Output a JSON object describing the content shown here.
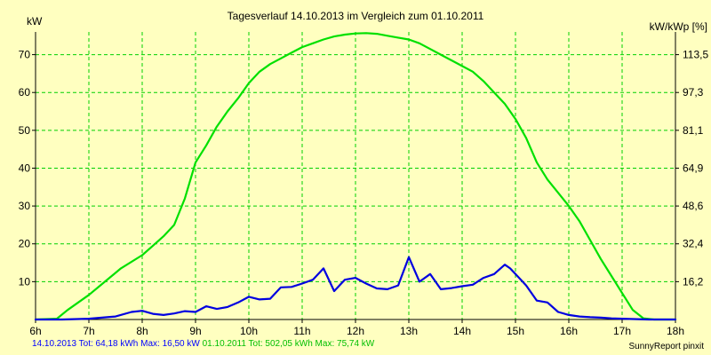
{
  "chart_data": {
    "type": "line",
    "title": "Tagesverlauf 14.10.2013 im Vergleich zum 01.10.2011",
    "ylabel_left": "kW",
    "ylabel_right": "kW/kWp [%]",
    "xlim": [
      6,
      18
    ],
    "ylim": [
      0,
      76
    ],
    "x_ticks": [
      {
        "x": 6,
        "label": "6h"
      },
      {
        "x": 7,
        "label": "7h"
      },
      {
        "x": 8,
        "label": "8h"
      },
      {
        "x": 9,
        "label": "9h"
      },
      {
        "x": 10,
        "label": "10h"
      },
      {
        "x": 11,
        "label": "11h"
      },
      {
        "x": 12,
        "label": "12h"
      },
      {
        "x": 13,
        "label": "13h"
      },
      {
        "x": 14,
        "label": "14h"
      },
      {
        "x": 15,
        "label": "15h"
      },
      {
        "x": 16,
        "label": "16h"
      },
      {
        "x": 17,
        "label": "17h"
      },
      {
        "x": 18,
        "label": "18h"
      }
    ],
    "y_ticks_left": [
      {
        "y": 10,
        "label": "10"
      },
      {
        "y": 20,
        "label": "20"
      },
      {
        "y": 30,
        "label": "30"
      },
      {
        "y": 40,
        "label": "40"
      },
      {
        "y": 50,
        "label": "50"
      },
      {
        "y": 60,
        "label": "60"
      },
      {
        "y": 70,
        "label": "70"
      }
    ],
    "y_ticks_right": [
      {
        "y": 10,
        "label": "16,2"
      },
      {
        "y": 20,
        "label": "32,4"
      },
      {
        "y": 30,
        "label": "48,6"
      },
      {
        "y": 40,
        "label": "64,9"
      },
      {
        "y": 50,
        "label": "81,1"
      },
      {
        "y": 60,
        "label": "97,3"
      },
      {
        "y": 70,
        "label": "113,5"
      }
    ],
    "grid": true,
    "series": [
      {
        "name": "01.10.2011",
        "color": "#00e000",
        "x": [
          6.0,
          6.4,
          6.6,
          7.0,
          7.3,
          7.6,
          8.0,
          8.2,
          8.4,
          8.6,
          8.8,
          9.0,
          9.2,
          9.4,
          9.6,
          9.8,
          10.0,
          10.2,
          10.4,
          10.6,
          10.8,
          11.0,
          11.2,
          11.4,
          11.6,
          11.8,
          12.0,
          12.2,
          12.4,
          12.6,
          12.8,
          13.0,
          13.2,
          13.4,
          13.6,
          13.8,
          14.0,
          14.2,
          14.4,
          14.6,
          14.8,
          15.0,
          15.2,
          15.4,
          15.6,
          15.8,
          16.0,
          16.2,
          16.4,
          16.6,
          16.8,
          17.0,
          17.2,
          17.4,
          17.6,
          18.0
        ],
        "y": [
          0.0,
          0.2,
          2.5,
          6.5,
          10.0,
          13.5,
          17.0,
          19.5,
          22.0,
          25.0,
          32.0,
          41.5,
          46.0,
          51.0,
          55.0,
          58.5,
          62.5,
          65.5,
          67.5,
          69.0,
          70.5,
          72.0,
          73.0,
          74.0,
          74.8,
          75.3,
          75.6,
          75.7,
          75.5,
          75.0,
          74.5,
          74.0,
          73.0,
          71.5,
          70.0,
          68.5,
          67.0,
          65.5,
          63.0,
          60.0,
          57.0,
          53.0,
          48.0,
          41.5,
          37.0,
          33.5,
          30.0,
          26.0,
          21.0,
          16.0,
          11.5,
          7.0,
          2.5,
          0.3,
          0.0,
          0.0
        ]
      },
      {
        "name": "14.10.2013",
        "color": "#0000e0",
        "x": [
          6.0,
          6.5,
          7.0,
          7.5,
          7.8,
          8.0,
          8.2,
          8.4,
          8.6,
          8.8,
          9.0,
          9.2,
          9.4,
          9.6,
          9.8,
          10.0,
          10.2,
          10.4,
          10.6,
          10.8,
          11.0,
          11.2,
          11.4,
          11.6,
          11.8,
          12.0,
          12.2,
          12.4,
          12.6,
          12.8,
          13.0,
          13.2,
          13.4,
          13.6,
          13.8,
          14.0,
          14.2,
          14.4,
          14.6,
          14.8,
          14.9,
          15.0,
          15.2,
          15.4,
          15.6,
          15.8,
          16.0,
          16.2,
          16.4,
          16.6,
          16.8,
          17.0,
          17.5,
          18.0
        ],
        "y": [
          0.0,
          0.0,
          0.2,
          0.8,
          2.0,
          2.3,
          1.5,
          1.2,
          1.6,
          2.2,
          2.0,
          3.5,
          2.8,
          3.3,
          4.5,
          6.0,
          5.3,
          5.5,
          8.5,
          8.6,
          9.5,
          10.5,
          13.5,
          7.5,
          10.5,
          11.0,
          9.5,
          8.2,
          8.0,
          9.0,
          16.5,
          10.0,
          12.0,
          8.0,
          8.3,
          8.8,
          9.2,
          11.0,
          12.0,
          14.5,
          13.5,
          12.0,
          9.0,
          5.0,
          4.5,
          2.0,
          1.2,
          0.8,
          0.6,
          0.5,
          0.3,
          0.2,
          0.0,
          0.0
        ]
      }
    ]
  },
  "footer": {
    "series1_text": "14.10.2013 Tot: 64,18 kWh Max: 16,50 kW",
    "series2_text": "01.10.2011 Tot: 502,05 kWh Max: 75,74 kW",
    "credit": "SunnyReport pinxit"
  }
}
